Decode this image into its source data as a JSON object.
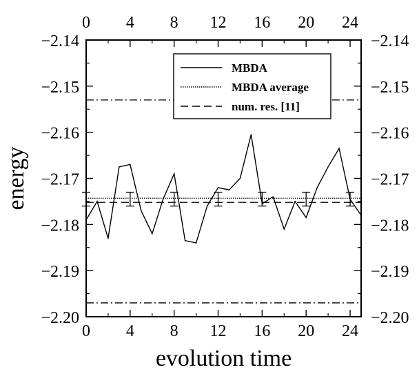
{
  "chart_data": {
    "type": "line",
    "xlabel": "evolution time",
    "ylabel": "energy",
    "xlim": [
      0,
      25
    ],
    "ylim": [
      -2.2,
      -2.14
    ],
    "x_ticks": [
      0,
      4,
      8,
      12,
      16,
      20,
      24
    ],
    "x_tick_labels": [
      "0",
      "4",
      "8",
      "12",
      "16",
      "20",
      "24"
    ],
    "y_ticks": [
      -2.2,
      -2.19,
      -2.18,
      -2.17,
      -2.16,
      -2.15,
      -2.14
    ],
    "y_tick_labels": [
      "−2.20",
      "−2.19",
      "−2.18",
      "−2.17",
      "−2.16",
      "−2.15",
      "−2.14"
    ],
    "mirror_axes": true,
    "grid": false,
    "legend_position": "top-right",
    "legend": [
      "MBDA",
      "MBDA average",
      "num. res. [11]"
    ],
    "series": [
      {
        "name": "MBDA",
        "style": "solid",
        "x": [
          0,
          1,
          2,
          3,
          4,
          5,
          6,
          7,
          8,
          9,
          10,
          11,
          12,
          13,
          14,
          15,
          16,
          17,
          18,
          19,
          20,
          21,
          22,
          23,
          24,
          25
        ],
        "y": [
          -2.179,
          -2.175,
          -2.183,
          -2.1675,
          -2.167,
          -2.177,
          -2.182,
          -2.1745,
          -2.169,
          -2.1835,
          -2.184,
          -2.176,
          -2.172,
          -2.1725,
          -2.17,
          -2.1605,
          -2.1755,
          -2.174,
          -2.181,
          -2.175,
          -2.1785,
          -2.172,
          -2.1675,
          -2.1635,
          -2.1745,
          -2.178
        ]
      },
      {
        "name": "MBDA average",
        "style": "dotted",
        "y": -2.1743
      },
      {
        "name": "num. res. [11]",
        "style": "dashed",
        "y": -2.1752
      }
    ],
    "error_bars": {
      "x": [
        0,
        4,
        8,
        12,
        16,
        20,
        24
      ],
      "y": [
        -2.1745,
        -2.1745,
        -2.1745,
        -2.1745,
        -2.1745,
        -2.1745,
        -2.1745
      ],
      "err": [
        0.0015,
        0.0015,
        0.0015,
        0.0015,
        0.0015,
        0.0015,
        0.0015
      ]
    },
    "reference_lines": [
      {
        "style": "dash-dot",
        "y": -2.153
      },
      {
        "style": "dash-dot",
        "y": -2.197
      }
    ]
  }
}
